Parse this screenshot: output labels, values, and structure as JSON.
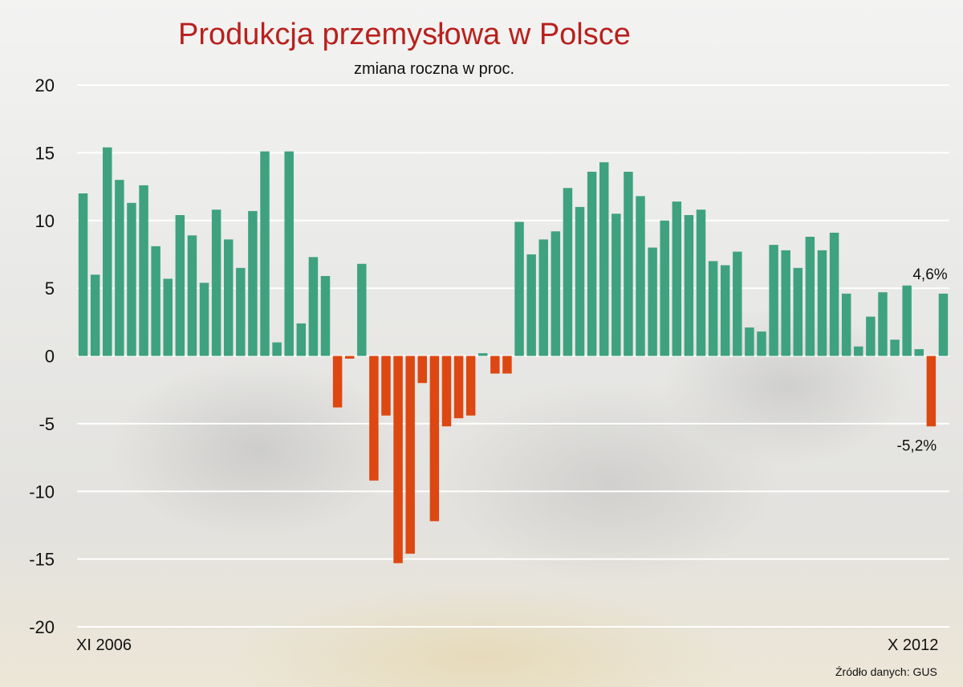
{
  "chart_data": {
    "type": "bar",
    "title": "Produkcja przemysłowa w Polsce",
    "subtitle": "zmiana roczna w proc.",
    "source": "Źródło danych: GUS",
    "first_period_label": "XI 2006",
    "last_period_label": "X 2012",
    "ylim": [
      -20,
      20
    ],
    "yticks": [
      "20",
      "15",
      "10",
      "5",
      "0",
      "-5",
      "-10",
      "-15",
      "-20"
    ],
    "yticks_values": [
      20,
      15,
      10,
      5,
      0,
      -5,
      -10,
      -15,
      -20
    ],
    "grid": true,
    "positive_color": "#3ea280",
    "negative_color": "#dd4712",
    "values": [
      12.0,
      6.0,
      15.4,
      13.0,
      11.3,
      12.6,
      8.1,
      5.7,
      10.4,
      8.9,
      5.4,
      10.8,
      8.6,
      6.5,
      10.7,
      15.1,
      1.0,
      15.1,
      2.4,
      7.3,
      5.9,
      -3.8,
      -0.2,
      6.8,
      -9.2,
      -4.4,
      -15.3,
      -14.6,
      -2.0,
      -12.2,
      -5.2,
      -4.6,
      -4.4,
      0.2,
      -1.3,
      -1.3,
      9.9,
      7.5,
      8.6,
      9.2,
      12.4,
      11.0,
      13.6,
      14.3,
      10.5,
      13.6,
      11.8,
      8.0,
      10.0,
      11.4,
      10.4,
      10.8,
      7.0,
      6.7,
      7.7,
      2.1,
      1.8,
      8.2,
      7.8,
      6.5,
      8.8,
      7.8,
      9.1,
      4.6,
      0.7,
      2.9,
      4.7,
      1.2,
      5.2,
      0.5,
      -5.2,
      4.6
    ],
    "annotations": [
      {
        "text": "4,6%",
        "bar_index": 71
      },
      {
        "text": "-5,2%",
        "bar_index": 70
      }
    ]
  }
}
